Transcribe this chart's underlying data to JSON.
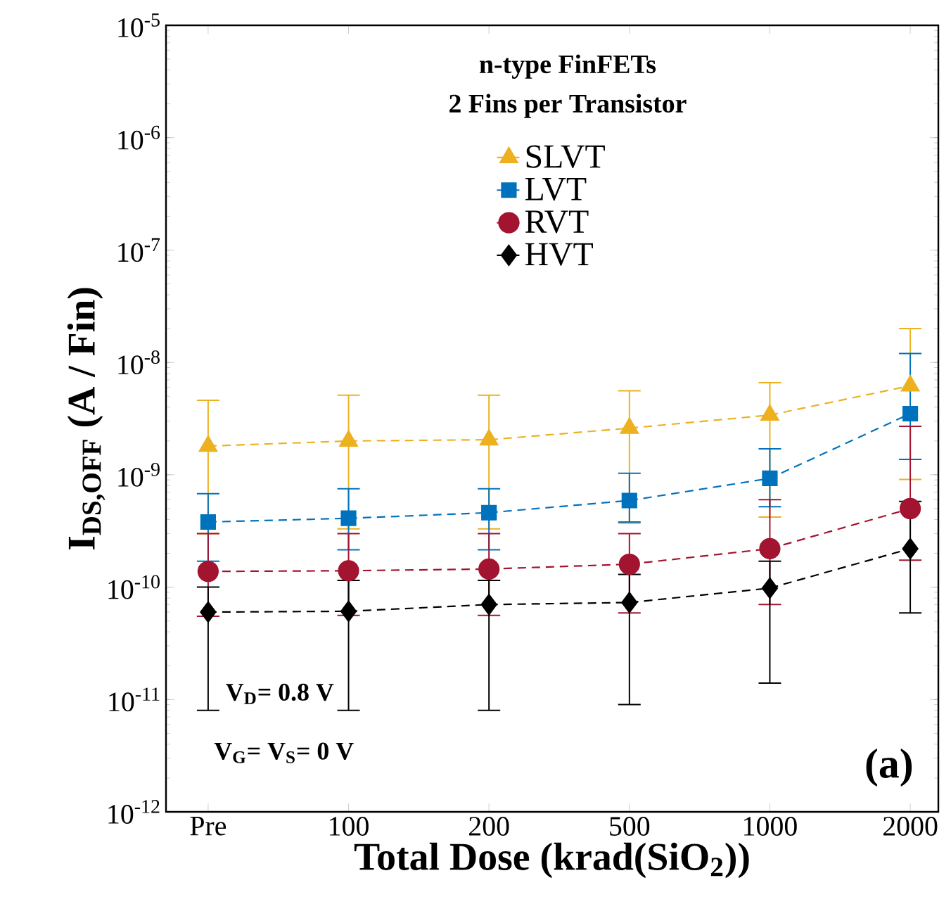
{
  "chart_data": {
    "type": "line",
    "xlabel": "Total Dose (krad(SiO$_{2}$))",
    "ylabel": "I$_{DS,OFF}$ (A / Fin)",
    "categories": [
      "Pre",
      "100",
      "200",
      "500",
      "1000",
      "2000"
    ],
    "log": "y",
    "ylim": [
      1e-12,
      1e-05
    ],
    "yticks": [
      {
        "value": 1e-12,
        "label": "10$^{-12}$"
      },
      {
        "value": 1e-11,
        "label": "10$^{-11}$"
      },
      {
        "value": 1e-10,
        "label": "10$^{-10}$"
      },
      {
        "value": 1e-09,
        "label": "10$^{-9}$"
      },
      {
        "value": 1e-08,
        "label": "10$^{-8}$"
      },
      {
        "value": 1e-07,
        "label": "10$^{-7}$"
      },
      {
        "value": 1e-06,
        "label": "10$^{-6}$"
      },
      {
        "value": 1e-05,
        "label": "10$^{-5}$"
      }
    ],
    "grid": false,
    "legend": "top",
    "line_style": "dashed",
    "series": [
      {
        "name": "SLVT",
        "color": "#edb120",
        "marker": "triangle",
        "values": [
          1.8e-09,
          2e-09,
          2.05e-09,
          2.6e-09,
          3.4e-09,
          6.2e-09
        ],
        "errors": [
          [
            3e-10,
            4.6e-09
          ],
          [
            3.3e-10,
            5.1e-09
          ],
          [
            3.3e-10,
            5.1e-09
          ],
          [
            3.7e-10,
            5.6e-09
          ],
          [
            4.2e-10,
            6.6e-09
          ],
          [
            9.1e-10,
            2e-08
          ]
        ]
      },
      {
        "name": "LVT",
        "color": "#0072bd",
        "marker": "square",
        "values": [
          3.8e-10,
          4.1e-10,
          4.6e-10,
          5.9e-10,
          9.3e-10,
          3.5e-09
        ],
        "errors": [
          [
            1.7e-10,
            6.8e-10
          ],
          [
            2.15e-10,
            7.5e-10
          ],
          [
            2.15e-10,
            7.5e-10
          ],
          [
            3.8e-10,
            1.03e-09
          ],
          [
            5.2e-10,
            1.7e-09
          ],
          [
            1.37e-09,
            1.2e-08
          ]
        ]
      },
      {
        "name": "RVT",
        "color": "#a2142f",
        "marker": "circle",
        "values": [
          1.38e-10,
          1.4e-10,
          1.45e-10,
          1.6e-10,
          2.2e-10,
          5e-10
        ],
        "errors": [
          [
            5.5e-11,
            3e-10
          ],
          [
            5.6e-11,
            3e-10
          ],
          [
            5.6e-11,
            3e-10
          ],
          [
            5.9e-11,
            3e-10
          ],
          [
            7e-11,
            6e-10
          ],
          [
            1.74e-10,
            2.7e-09
          ]
        ]
      },
      {
        "name": "HVT",
        "color": "#000000",
        "marker": "diamond",
        "values": [
          6e-11,
          6.1e-11,
          7e-11,
          7.3e-11,
          9.8e-11,
          2.2e-10
        ],
        "errors": [
          [
            8e-12,
            1e-10
          ],
          [
            8e-12,
            1.15e-10
          ],
          [
            8e-12,
            1.15e-10
          ],
          [
            9e-12,
            1.3e-10
          ],
          [
            1.4e-11,
            1.7e-10
          ],
          [
            5.9e-11,
            5.8e-10
          ]
        ]
      }
    ],
    "annotations": [
      "n-type FinFETs",
      "2 Fins per Transistor",
      "V$_{D}$= 0.8 V",
      "V$_{G}$= V$_{S}$= 0 V",
      "(a)"
    ]
  }
}
